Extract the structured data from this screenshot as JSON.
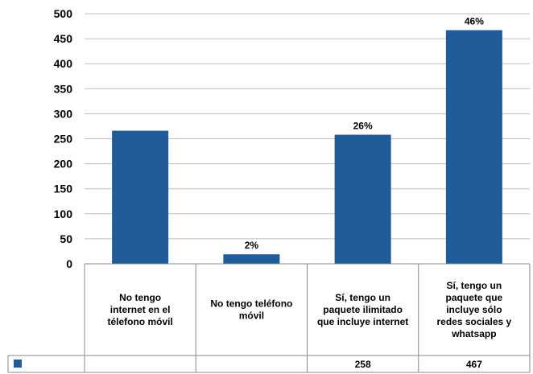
{
  "chart_data": {
    "type": "bar",
    "categories": [
      "No tengo internet en el télefono móvil",
      "No tengo teléfono móvil",
      "Sí, tengo un paquete ilimitado que incluye internet",
      "Sí, tengo un paquete que incluye sólo redes sociales y whatsapp"
    ],
    "category_lines": [
      [
        "No tengo",
        "internet en el",
        "télefono móvil"
      ],
      [
        "No tengo teléfono",
        "móvil"
      ],
      [
        "Sí, tengo un",
        "paquete ilimitado",
        "que incluye internet"
      ],
      [
        "Sí, tengo un",
        "paquete que",
        "incluye sólo",
        "redes sociales y",
        "whatsapp"
      ]
    ],
    "values": [
      266,
      19,
      258,
      467
    ],
    "data_labels": [
      "",
      "2%",
      "26%",
      "46%"
    ],
    "table_values": [
      "",
      "",
      "258",
      "467"
    ],
    "yticks": [
      "0",
      "50",
      "100",
      "150",
      "200",
      "250",
      "300",
      "350",
      "400",
      "450",
      "500"
    ],
    "ylim": [
      0,
      500
    ],
    "grid": true,
    "legend": "table-left",
    "colors": {
      "bar": "#1F5C99",
      "grid": "#BFBFBF",
      "axis": "#888888",
      "table": "#888888"
    }
  }
}
